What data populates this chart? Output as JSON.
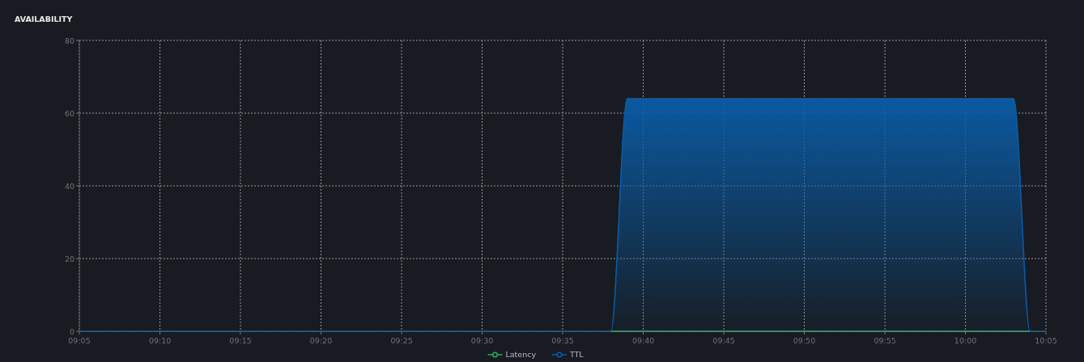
{
  "chart_data": {
    "type": "line",
    "title": "AVAILABILITY",
    "xlim": [
      9.0833,
      10.0833
    ],
    "xticks": [
      {
        "value": 9.0833,
        "label": "09:05"
      },
      {
        "value": 9.1667,
        "label": "09:10"
      },
      {
        "value": 9.25,
        "label": "09:15"
      },
      {
        "value": 9.3333,
        "label": "09:20"
      },
      {
        "value": 9.4167,
        "label": "09:25"
      },
      {
        "value": 9.5,
        "label": "09:30"
      },
      {
        "value": 9.5833,
        "label": "09:35"
      },
      {
        "value": 9.6667,
        "label": "09:40"
      },
      {
        "value": 9.75,
        "label": "09:45"
      },
      {
        "value": 9.8333,
        "label": "09:50"
      },
      {
        "value": 9.9167,
        "label": "09:55"
      },
      {
        "value": 10,
        "label": "10:00"
      },
      {
        "value": 10.0833,
        "label": "10:05"
      }
    ],
    "ylim": [
      0,
      80
    ],
    "yticks": [
      0,
      20,
      40,
      60,
      80
    ],
    "grid": true,
    "legend": "bottom",
    "marker": "none",
    "line_style": "solid",
    "series": [
      {
        "name": "Latency",
        "color": "#2ea86a",
        "x": [
          9.6333,
          9.6667,
          9.75,
          9.8333,
          9.9167,
          10,
          10.0667
        ],
        "values": [
          0,
          0,
          0,
          0,
          0,
          0,
          0
        ]
      },
      {
        "name": "TTL",
        "type": "area",
        "color": "#0a5ca8",
        "x": [
          9.0833,
          9.6333,
          9.65,
          10.05,
          10.0667,
          10.0833
        ],
        "values": [
          0,
          0,
          64,
          64,
          0,
          0
        ]
      }
    ]
  }
}
